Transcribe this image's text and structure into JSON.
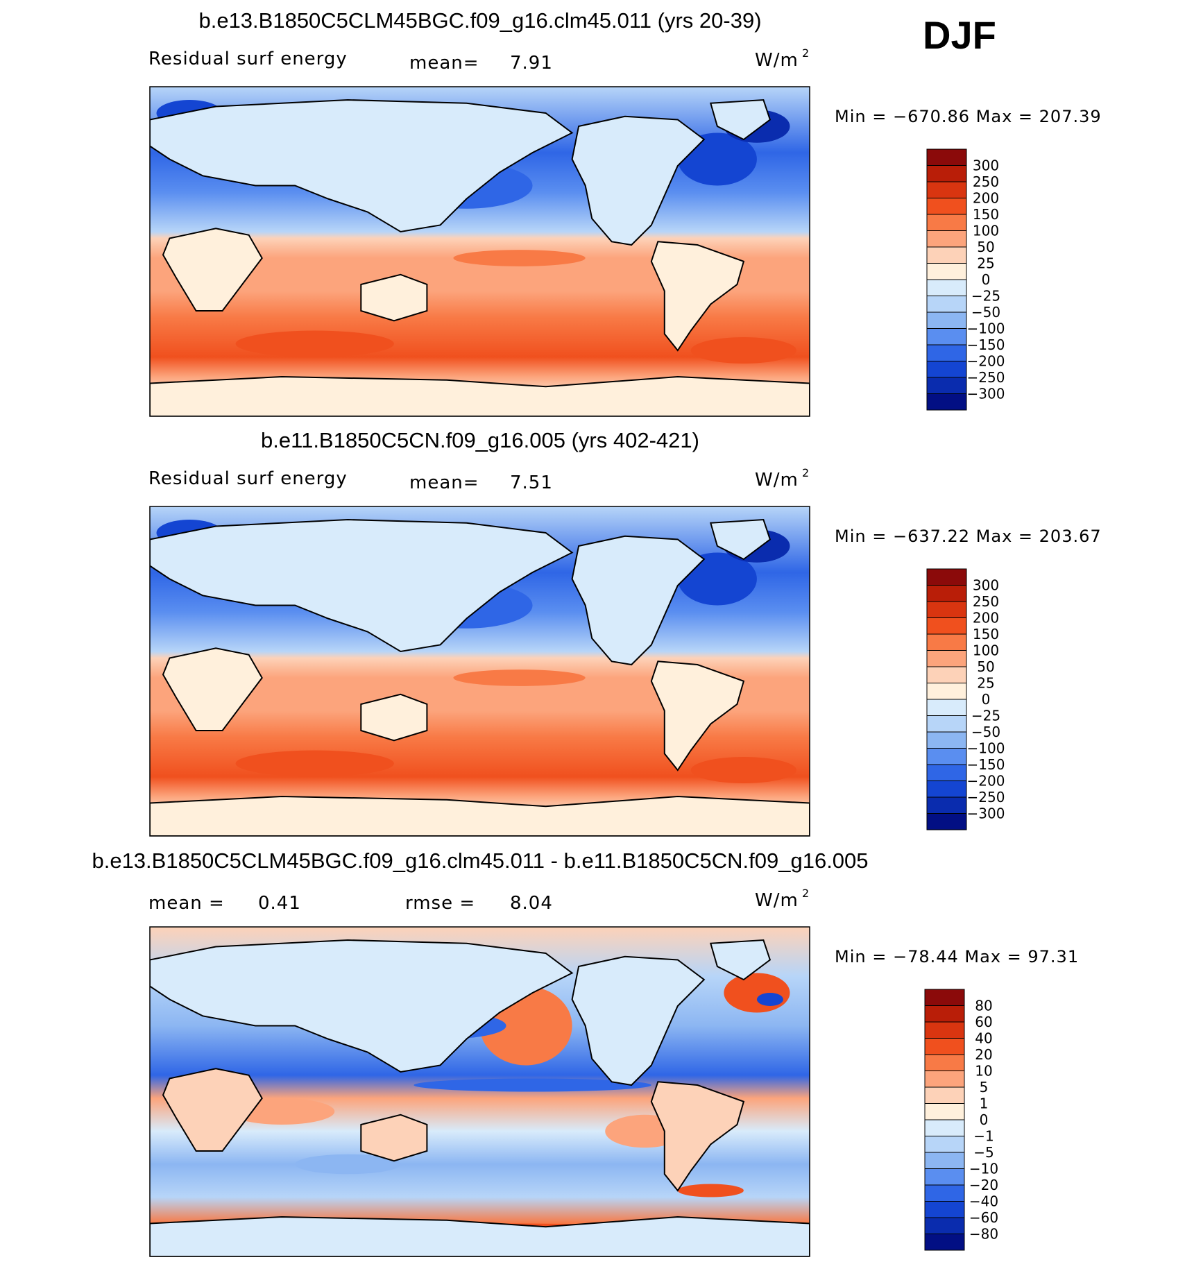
{
  "season": "DJF",
  "panels": [
    {
      "title": "b.e13.B1850C5CLM45BGC.f09_g16.clm45.011 (yrs 20-39)",
      "variable": "Residual surf energy",
      "stat1_label": "mean=",
      "stat1_value": "7.91",
      "stat2_label": "",
      "stat2_value": "",
      "units": "W/m",
      "units_sup": "2",
      "minmax": "Min = −670.86 Max = 207.39",
      "colorbar": {
        "labels": [
          "300",
          "250",
          "200",
          "150",
          "100",
          "50",
          "25",
          "0",
          "−25",
          "−50",
          "−100",
          "−150",
          "−200",
          "−250",
          "−300"
        ],
        "colors": [
          "#8b0a0a",
          "#b91e08",
          "#d93510",
          "#f0501e",
          "#f87a46",
          "#fca47c",
          "#fdd2b8",
          "#fff0dc",
          "#d8ebfb",
          "#b7d5f8",
          "#8cb6f2",
          "#5a8ef0",
          "#2f66e6",
          "#1445d2",
          "#0a2cae",
          "#020f84"
        ]
      },
      "map": {
        "kind": "abs"
      }
    },
    {
      "title": "b.e11.B1850C5CN.f09_g16.005 (yrs 402-421)",
      "variable": "Residual surf energy",
      "stat1_label": "mean=",
      "stat1_value": "7.51",
      "stat2_label": "",
      "stat2_value": "",
      "units": "W/m",
      "units_sup": "2",
      "minmax": "Min = −637.22 Max = 203.67",
      "colorbar": {
        "labels": [
          "300",
          "250",
          "200",
          "150",
          "100",
          "50",
          "25",
          "0",
          "−25",
          "−50",
          "−100",
          "−150",
          "−200",
          "−250",
          "−300"
        ],
        "colors": [
          "#8b0a0a",
          "#b91e08",
          "#d93510",
          "#f0501e",
          "#f87a46",
          "#fca47c",
          "#fdd2b8",
          "#fff0dc",
          "#d8ebfb",
          "#b7d5f8",
          "#8cb6f2",
          "#5a8ef0",
          "#2f66e6",
          "#1445d2",
          "#0a2cae",
          "#020f84"
        ]
      },
      "map": {
        "kind": "abs"
      }
    },
    {
      "title": "b.e13.B1850C5CLM45BGC.f09_g16.clm45.011 - b.e11.B1850C5CN.f09_g16.005",
      "variable": "",
      "stat1_label": "mean =",
      "stat1_value": "0.41",
      "stat2_label": "rmse =",
      "stat2_value": "8.04",
      "units": "W/m",
      "units_sup": "2",
      "minmax": "Min = −78.44 Max =  97.31",
      "colorbar": {
        "labels": [
          "80",
          "60",
          "40",
          "20",
          "10",
          "5",
          "1",
          "0",
          "−1",
          "−5",
          "−10",
          "−20",
          "−40",
          "−60",
          "−80"
        ],
        "colors": [
          "#8b0a0a",
          "#b91e08",
          "#d93510",
          "#f0501e",
          "#f87a46",
          "#fca47c",
          "#fdd2b8",
          "#fff0dc",
          "#d8ebfb",
          "#b7d5f8",
          "#8cb6f2",
          "#5a8ef0",
          "#2f66e6",
          "#1445d2",
          "#0a2cae",
          "#020f84"
        ]
      },
      "map": {
        "kind": "diff"
      }
    }
  ]
}
